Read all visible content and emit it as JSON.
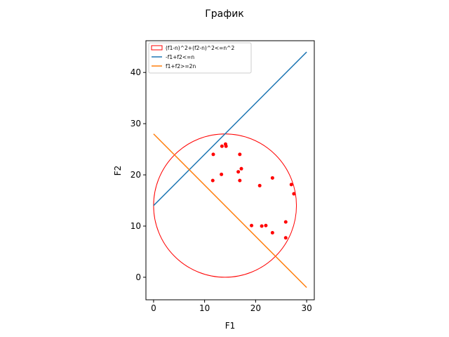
{
  "chart_data": {
    "type": "scatter",
    "title": "График",
    "xlabel": "F1",
    "ylabel": "F2",
    "xlim": [
      -1.5,
      31.5
    ],
    "ylim": [
      -4.4,
      46.2
    ],
    "xticks": [
      0,
      10,
      20,
      30
    ],
    "yticks": [
      0,
      10,
      20,
      30,
      40
    ],
    "grid": false,
    "legend_position": "top-left",
    "legend": [
      {
        "label": "(f1-n)^2+(f2-n)^2<=n^2",
        "kind": "patch",
        "color": "#ff0000"
      },
      {
        "label": "-f1+f2<=n",
        "kind": "line",
        "color": "#1f77b4"
      },
      {
        "label": "f1+f2>=2n",
        "kind": "line",
        "color": "#ff7f0e"
      }
    ],
    "circle": {
      "center": [
        14,
        14
      ],
      "radius": 14,
      "color": "#ff0000"
    },
    "lines": [
      {
        "label": "-f1+f2<=n",
        "color": "#1f77b4",
        "x": [
          0,
          30
        ],
        "y": [
          14,
          44
        ]
      },
      {
        "label": "f1+f2>=2n",
        "color": "#ff7f0e",
        "x": [
          0,
          30
        ],
        "y": [
          28,
          -2
        ]
      }
    ],
    "points": {
      "color": "#ff0000",
      "x": [
        11.7,
        13.4,
        14.1,
        14.2,
        16.9,
        11.6,
        13.3,
        16.6,
        17.2,
        16.9,
        20.8,
        23.3,
        27.0,
        27.5,
        19.2,
        21.2,
        22.0,
        23.3,
        25.9,
        25.9
      ],
      "y": [
        24.0,
        25.6,
        26.0,
        25.6,
        24.0,
        18.9,
        20.1,
        20.6,
        21.2,
        18.9,
        17.9,
        19.4,
        18.1,
        16.3,
        10.1,
        10.0,
        10.1,
        8.7,
        10.8,
        7.7
      ]
    }
  }
}
